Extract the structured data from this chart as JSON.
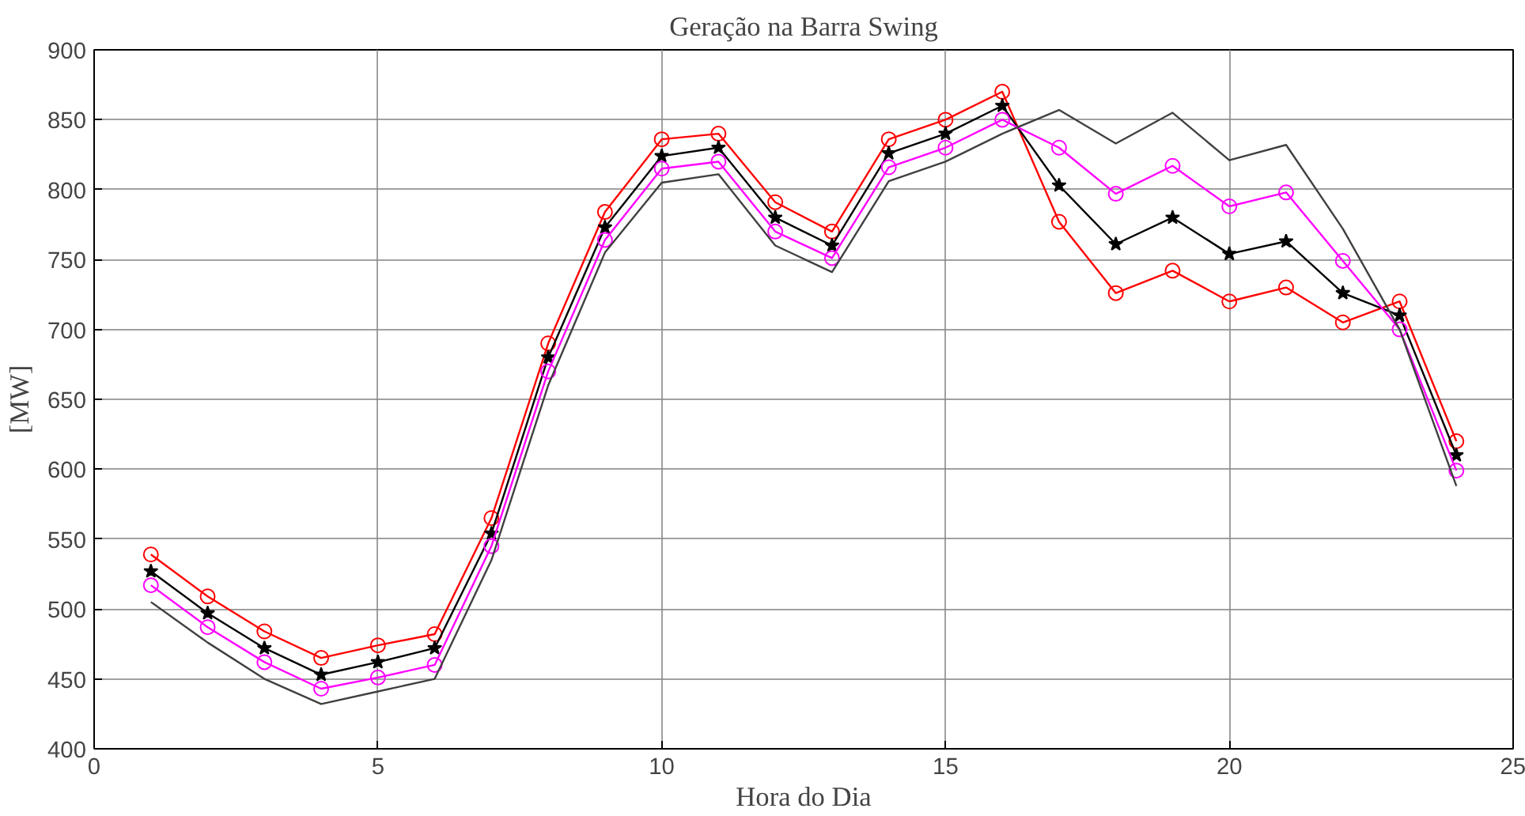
{
  "chart_data": {
    "type": "line",
    "title": "Geração na Barra Swing",
    "xlabel": "Hora do Dia",
    "ylabel": "[MW]",
    "x": [
      1,
      2,
      3,
      4,
      5,
      6,
      7,
      8,
      9,
      10,
      11,
      12,
      13,
      14,
      15,
      16,
      17,
      18,
      19,
      20,
      21,
      22,
      23,
      24
    ],
    "series": [
      {
        "color": "#ff0000",
        "marker": "circle",
        "values": [
          539,
          509,
          484,
          465,
          474,
          482,
          565,
          690,
          784,
          836,
          840,
          791,
          770,
          836,
          850,
          870,
          777,
          726,
          742,
          720,
          730,
          705,
          720,
          620
        ]
      },
      {
        "color": "#000000",
        "marker": "star",
        "values": [
          527,
          497,
          472,
          453,
          462,
          472,
          554,
          680,
          773,
          824,
          830,
          780,
          760,
          826,
          840,
          860,
          803,
          761,
          780,
          754,
          763,
          726,
          710,
          610
        ]
      },
      {
        "color": "#ff00ff",
        "marker": "circle",
        "values": [
          517,
          487,
          462,
          443,
          451,
          460,
          545,
          670,
          764,
          815,
          820,
          770,
          751,
          816,
          830,
          850,
          830,
          797,
          817,
          788,
          798,
          749,
          700,
          599
        ]
      },
      {
        "color": "#404040",
        "marker": "none",
        "values": [
          505,
          476,
          450,
          432,
          441,
          450,
          535,
          660,
          755,
          805,
          811,
          760,
          741,
          806,
          820,
          840,
          857,
          833,
          855,
          821,
          832,
          772,
          700,
          588
        ]
      }
    ],
    "xlim": [
      0,
      25
    ],
    "xticks": [
      0,
      5,
      10,
      15,
      20,
      25
    ],
    "ylim": [
      400,
      900
    ],
    "yticks": [
      400,
      450,
      500,
      550,
      600,
      650,
      700,
      750,
      800,
      850,
      900
    ],
    "grid": true,
    "line_style": "solid"
  }
}
